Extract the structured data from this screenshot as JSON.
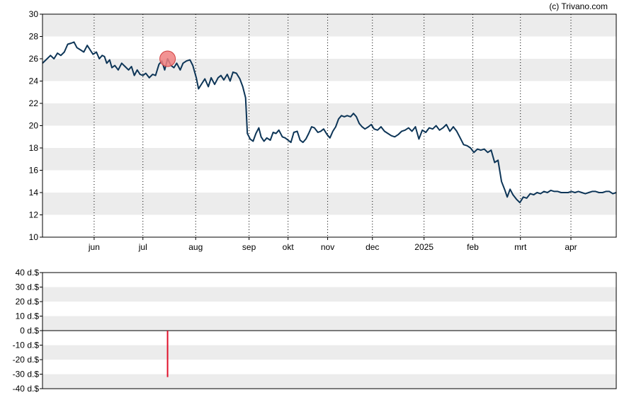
{
  "credit": "(c) Trivano.com",
  "colors": {
    "line": "#0d3557",
    "band": "#ececec",
    "marker_fill": "#f08080",
    "marker_stroke": "#d04040",
    "dividend_bar": "#e0102a",
    "frame": "#000000"
  },
  "chart_data": [
    {
      "type": "line",
      "title": "",
      "xlabel": "",
      "ylabel": "",
      "ylim": [
        10,
        30
      ],
      "yticks": [
        "10",
        "12",
        "14",
        "16",
        "18",
        "20",
        "22",
        "24",
        "26",
        "28",
        "30"
      ],
      "xticks": [
        {
          "label": "jun",
          "pos": 0.09
        },
        {
          "label": "jul",
          "pos": 0.175
        },
        {
          "label": "aug",
          "pos": 0.267
        },
        {
          "label": "sep",
          "pos": 0.36
        },
        {
          "label": "okt",
          "pos": 0.428
        },
        {
          "label": "nov",
          "pos": 0.497
        },
        {
          "label": "dec",
          "pos": 0.575
        },
        {
          "label": "2025",
          "pos": 0.665
        },
        {
          "label": "feb",
          "pos": 0.75
        },
        {
          "label": "mrt",
          "pos": 0.833
        },
        {
          "label": "apr",
          "pos": 0.921
        }
      ],
      "grid": "horizontal bands, dotted vertical month lines",
      "marker": {
        "pos": 0.218,
        "value": 26.0
      },
      "series": [
        {
          "points": [
            [
              0.0,
              25.6
            ],
            [
              0.008,
              26.0
            ],
            [
              0.014,
              26.3
            ],
            [
              0.02,
              26.0
            ],
            [
              0.026,
              26.5
            ],
            [
              0.032,
              26.3
            ],
            [
              0.038,
              26.6
            ],
            [
              0.044,
              27.3
            ],
            [
              0.05,
              27.4
            ],
            [
              0.055,
              27.5
            ],
            [
              0.06,
              27.0
            ],
            [
              0.066,
              26.8
            ],
            [
              0.072,
              26.6
            ],
            [
              0.078,
              27.2
            ],
            [
              0.083,
              26.8
            ],
            [
              0.088,
              26.4
            ],
            [
              0.094,
              26.6
            ],
            [
              0.099,
              26.0
            ],
            [
              0.104,
              26.3
            ],
            [
              0.108,
              26.2
            ],
            [
              0.112,
              25.6
            ],
            [
              0.117,
              25.9
            ],
            [
              0.121,
              25.2
            ],
            [
              0.126,
              25.4
            ],
            [
              0.132,
              25.0
            ],
            [
              0.138,
              25.6
            ],
            [
              0.144,
              25.3
            ],
            [
              0.15,
              25.0
            ],
            [
              0.155,
              25.3
            ],
            [
              0.16,
              24.5
            ],
            [
              0.165,
              25.0
            ],
            [
              0.17,
              24.6
            ],
            [
              0.175,
              24.5
            ],
            [
              0.18,
              24.7
            ],
            [
              0.186,
              24.3
            ],
            [
              0.192,
              24.6
            ],
            [
              0.197,
              24.5
            ],
            [
              0.203,
              25.5
            ],
            [
              0.208,
              25.8
            ],
            [
              0.213,
              25.0
            ],
            [
              0.218,
              26.0
            ],
            [
              0.224,
              25.4
            ],
            [
              0.229,
              25.2
            ],
            [
              0.234,
              25.6
            ],
            [
              0.24,
              25.0
            ],
            [
              0.245,
              25.6
            ],
            [
              0.251,
              25.8
            ],
            [
              0.257,
              25.9
            ],
            [
              0.262,
              25.4
            ],
            [
              0.268,
              24.3
            ],
            [
              0.272,
              23.3
            ],
            [
              0.278,
              23.8
            ],
            [
              0.283,
              24.2
            ],
            [
              0.289,
              23.5
            ],
            [
              0.294,
              24.3
            ],
            [
              0.3,
              23.7
            ],
            [
              0.306,
              24.3
            ],
            [
              0.311,
              24.5
            ],
            [
              0.316,
              24.1
            ],
            [
              0.322,
              24.6
            ],
            [
              0.327,
              24.0
            ],
            [
              0.332,
              24.8
            ],
            [
              0.338,
              24.7
            ],
            [
              0.344,
              24.2
            ],
            [
              0.349,
              23.5
            ],
            [
              0.354,
              22.5
            ],
            [
              0.357,
              19.3
            ],
            [
              0.362,
              18.8
            ],
            [
              0.367,
              18.6
            ],
            [
              0.372,
              19.3
            ],
            [
              0.377,
              19.8
            ],
            [
              0.381,
              19.0
            ],
            [
              0.386,
              18.6
            ],
            [
              0.391,
              18.9
            ],
            [
              0.397,
              18.7
            ],
            [
              0.402,
              19.4
            ],
            [
              0.407,
              19.3
            ],
            [
              0.412,
              19.6
            ],
            [
              0.418,
              19.0
            ],
            [
              0.423,
              18.9
            ],
            [
              0.428,
              18.7
            ],
            [
              0.433,
              18.5
            ],
            [
              0.438,
              19.4
            ],
            [
              0.444,
              19.5
            ],
            [
              0.449,
              18.7
            ],
            [
              0.454,
              18.5
            ],
            [
              0.459,
              18.8
            ],
            [
              0.464,
              19.3
            ],
            [
              0.469,
              19.9
            ],
            [
              0.474,
              19.8
            ],
            [
              0.48,
              19.4
            ],
            [
              0.485,
              19.5
            ],
            [
              0.49,
              19.7
            ],
            [
              0.496,
              19.2
            ],
            [
              0.501,
              18.9
            ],
            [
              0.506,
              19.5
            ],
            [
              0.511,
              19.9
            ],
            [
              0.516,
              20.6
            ],
            [
              0.521,
              20.9
            ],
            [
              0.526,
              20.8
            ],
            [
              0.531,
              20.9
            ],
            [
              0.537,
              20.8
            ],
            [
              0.542,
              21.1
            ],
            [
              0.547,
              20.8
            ],
            [
              0.552,
              20.2
            ],
            [
              0.557,
              19.9
            ],
            [
              0.562,
              19.7
            ],
            [
              0.568,
              19.9
            ],
            [
              0.573,
              20.1
            ],
            [
              0.578,
              19.7
            ],
            [
              0.584,
              19.6
            ],
            [
              0.59,
              19.9
            ],
            [
              0.596,
              19.5
            ],
            [
              0.602,
              19.3
            ],
            [
              0.608,
              19.1
            ],
            [
              0.614,
              19.0
            ],
            [
              0.62,
              19.2
            ],
            [
              0.626,
              19.5
            ],
            [
              0.632,
              19.6
            ],
            [
              0.638,
              19.8
            ],
            [
              0.644,
              19.5
            ],
            [
              0.65,
              19.9
            ],
            [
              0.656,
              18.8
            ],
            [
              0.662,
              19.6
            ],
            [
              0.668,
              19.4
            ],
            [
              0.674,
              19.8
            ],
            [
              0.68,
              19.7
            ],
            [
              0.686,
              20.0
            ],
            [
              0.692,
              19.6
            ],
            [
              0.698,
              19.8
            ],
            [
              0.704,
              20.1
            ],
            [
              0.71,
              19.5
            ],
            [
              0.716,
              19.9
            ],
            [
              0.722,
              19.5
            ],
            [
              0.728,
              18.9
            ],
            [
              0.734,
              18.3
            ],
            [
              0.74,
              18.2
            ],
            [
              0.746,
              18.0
            ],
            [
              0.752,
              17.6
            ],
            [
              0.758,
              17.9
            ],
            [
              0.764,
              17.8
            ],
            [
              0.77,
              17.9
            ],
            [
              0.776,
              17.6
            ],
            [
              0.782,
              17.8
            ],
            [
              0.788,
              16.7
            ],
            [
              0.794,
              16.9
            ],
            [
              0.8,
              15.0
            ],
            [
              0.806,
              14.2
            ],
            [
              0.81,
              13.6
            ],
            [
              0.815,
              14.3
            ],
            [
              0.82,
              13.8
            ],
            [
              0.826,
              13.4
            ],
            [
              0.832,
              13.1
            ],
            [
              0.838,
              13.6
            ],
            [
              0.844,
              13.5
            ],
            [
              0.85,
              13.9
            ],
            [
              0.856,
              13.8
            ],
            [
              0.862,
              14.0
            ],
            [
              0.868,
              13.9
            ],
            [
              0.874,
              14.1
            ],
            [
              0.88,
              14.0
            ],
            [
              0.886,
              14.2
            ],
            [
              0.892,
              14.1
            ],
            [
              0.898,
              14.1
            ],
            [
              0.904,
              14.0
            ],
            [
              0.91,
              14.0
            ],
            [
              0.916,
              14.0
            ],
            [
              0.922,
              14.1
            ],
            [
              0.928,
              14.0
            ],
            [
              0.934,
              14.1
            ],
            [
              0.94,
              14.0
            ],
            [
              0.946,
              13.9
            ],
            [
              0.952,
              14.0
            ],
            [
              0.958,
              14.1
            ],
            [
              0.964,
              14.1
            ],
            [
              0.97,
              14.0
            ],
            [
              0.976,
              14.0
            ],
            [
              0.982,
              14.1
            ],
            [
              0.988,
              14.1
            ],
            [
              0.994,
              13.9
            ],
            [
              1.0,
              14.0
            ]
          ]
        }
      ]
    },
    {
      "type": "bar",
      "title": "",
      "xlabel": "",
      "ylabel": "",
      "ylim": [
        -40,
        40
      ],
      "yticks": [
        "-40 d.$",
        "-30 d.$",
        "-20 d.$",
        "-10 d.$",
        "0 d.$",
        "10 d.$",
        "20 d.$",
        "30 d.$",
        "40 d.$"
      ],
      "bars": [
        {
          "pos": 0.218,
          "value": -32
        }
      ]
    }
  ]
}
